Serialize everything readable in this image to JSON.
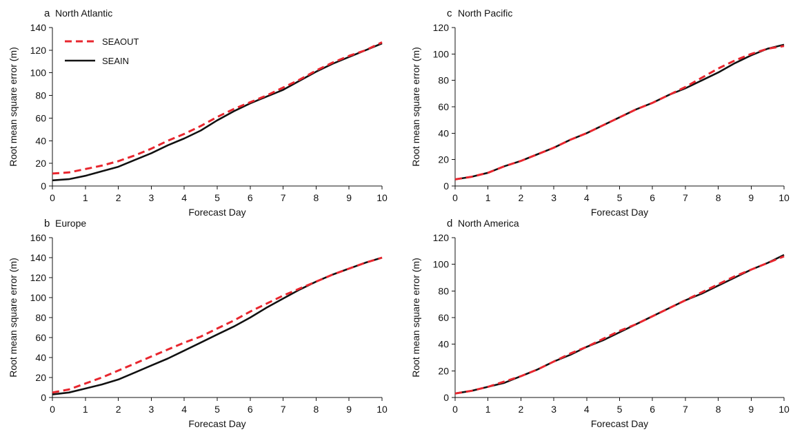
{
  "chart_data": [
    {
      "type": "line",
      "letter": "a",
      "title": "North Atlantic",
      "xlabel": "Forecast Day",
      "ylabel": "Root mean square error (m)",
      "xlim": [
        0,
        10
      ],
      "ylim": [
        0,
        140
      ],
      "xticks": [
        0,
        1,
        2,
        3,
        4,
        5,
        6,
        7,
        8,
        9,
        10
      ],
      "yticks": [
        0,
        20,
        40,
        60,
        80,
        100,
        120,
        140
      ],
      "legend": "top-left",
      "series": [
        {
          "name": "SEAOUT",
          "color": "#e8262e",
          "style": "dashed",
          "x": [
            0,
            0.5,
            1,
            1.5,
            2,
            2.5,
            3,
            3.5,
            4,
            4.5,
            5,
            5.5,
            6,
            6.5,
            7,
            7.5,
            8,
            8.5,
            9,
            9.5,
            10
          ],
          "y": [
            11,
            12,
            15,
            18,
            22,
            27,
            33,
            40,
            46,
            53,
            61,
            68,
            74,
            80,
            87,
            94,
            102,
            109,
            115,
            120,
            127
          ]
        },
        {
          "name": "SEAIN",
          "color": "#111111",
          "style": "solid",
          "x": [
            0,
            0.5,
            1,
            1.5,
            2,
            2.5,
            3,
            3.5,
            4,
            4.5,
            5,
            5.5,
            6,
            6.5,
            7,
            7.5,
            8,
            8.5,
            9,
            9.5,
            10
          ],
          "y": [
            5,
            6,
            9,
            13,
            17,
            23,
            29,
            36,
            42,
            49,
            58,
            66,
            73,
            79,
            85,
            93,
            101,
            108,
            114,
            120,
            126
          ]
        }
      ]
    },
    {
      "type": "line",
      "letter": "b",
      "title": "Europe",
      "xlabel": "Forecast Day",
      "ylabel": "Root mean square error (m)",
      "xlim": [
        0,
        10
      ],
      "ylim": [
        0,
        160
      ],
      "xticks": [
        0,
        1,
        2,
        3,
        4,
        5,
        6,
        7,
        8,
        9,
        10
      ],
      "yticks": [
        0,
        20,
        40,
        60,
        80,
        100,
        120,
        140,
        160
      ],
      "series": [
        {
          "name": "SEAOUT",
          "color": "#e8262e",
          "style": "dashed",
          "x": [
            0,
            0.5,
            1,
            1.5,
            2,
            2.5,
            3,
            3.5,
            4,
            4.5,
            5,
            5.5,
            6,
            6.5,
            7,
            7.5,
            8,
            8.5,
            9,
            9.5,
            10
          ],
          "y": [
            5,
            8,
            14,
            20,
            27,
            34,
            41,
            48,
            55,
            61,
            69,
            77,
            86,
            94,
            102,
            109,
            116,
            123,
            129,
            135,
            140
          ]
        },
        {
          "name": "SEAIN",
          "color": "#111111",
          "style": "solid",
          "x": [
            0,
            0.5,
            1,
            1.5,
            2,
            2.5,
            3,
            3.5,
            4,
            4.5,
            5,
            5.5,
            6,
            6.5,
            7,
            7.5,
            8,
            8.5,
            9,
            9.5,
            10
          ],
          "y": [
            3,
            5,
            9,
            13,
            18,
            25,
            32,
            39,
            47,
            55,
            63,
            71,
            80,
            90,
            99,
            108,
            116,
            123,
            129,
            135,
            140
          ]
        }
      ]
    },
    {
      "type": "line",
      "letter": "c",
      "title": "North Pacific",
      "xlabel": "Forecast Day",
      "ylabel": "Root mean square error (m)",
      "xlim": [
        0,
        10
      ],
      "ylim": [
        0,
        120
      ],
      "xticks": [
        0,
        1,
        2,
        3,
        4,
        5,
        6,
        7,
        8,
        9,
        10
      ],
      "yticks": [
        0,
        20,
        40,
        60,
        80,
        100,
        120
      ],
      "series": [
        {
          "name": "SEAOUT",
          "color": "#e8262e",
          "style": "dashed",
          "x": [
            0,
            0.5,
            1,
            1.5,
            2,
            2.5,
            3,
            3.5,
            4,
            4.5,
            5,
            5.5,
            6,
            6.5,
            7,
            7.5,
            8,
            8.5,
            9,
            9.5,
            10
          ],
          "y": [
            5,
            7,
            10,
            15,
            19,
            24,
            29,
            35,
            40,
            46,
            52,
            58,
            63,
            69,
            75,
            82,
            89,
            95,
            100,
            104,
            106
          ]
        },
        {
          "name": "SEAIN",
          "color": "#111111",
          "style": "solid",
          "x": [
            0,
            0.5,
            1,
            1.5,
            2,
            2.5,
            3,
            3.5,
            4,
            4.5,
            5,
            5.5,
            6,
            6.5,
            7,
            7.5,
            8,
            8.5,
            9,
            9.5,
            10
          ],
          "y": [
            5,
            7,
            10,
            15,
            19,
            24,
            29,
            35,
            40,
            46,
            52,
            58,
            63,
            69,
            74,
            80,
            86,
            93,
            99,
            104,
            107
          ]
        }
      ]
    },
    {
      "type": "line",
      "letter": "d",
      "title": "North America",
      "xlabel": "Forecast Day",
      "ylabel": "Root mean square error (m)",
      "xlim": [
        0,
        10
      ],
      "ylim": [
        0,
        120
      ],
      "xticks": [
        0,
        1,
        2,
        3,
        4,
        5,
        6,
        7,
        8,
        9,
        10
      ],
      "yticks": [
        0,
        20,
        40,
        60,
        80,
        100,
        120
      ],
      "series": [
        {
          "name": "SEAOUT",
          "color": "#e8262e",
          "style": "dashed",
          "x": [
            0,
            0.5,
            1,
            1.5,
            2,
            2.5,
            3,
            3.5,
            4,
            4.5,
            5,
            5.5,
            6,
            6.5,
            7,
            7.5,
            8,
            8.5,
            9,
            9.5,
            10
          ],
          "y": [
            3,
            5,
            8,
            12,
            16,
            21,
            27,
            33,
            38,
            44,
            50,
            55,
            61,
            67,
            73,
            79,
            85,
            91,
            96,
            101,
            106
          ]
        },
        {
          "name": "SEAIN",
          "color": "#111111",
          "style": "solid",
          "x": [
            0,
            0.5,
            1,
            1.5,
            2,
            2.5,
            3,
            3.5,
            4,
            4.5,
            5,
            5.5,
            6,
            6.5,
            7,
            7.5,
            8,
            8.5,
            9,
            9.5,
            10
          ],
          "y": [
            3,
            5,
            8,
            11,
            16,
            21,
            27,
            32,
            38,
            43,
            49,
            55,
            61,
            67,
            73,
            78,
            84,
            90,
            96,
            101,
            107
          ]
        }
      ]
    }
  ]
}
